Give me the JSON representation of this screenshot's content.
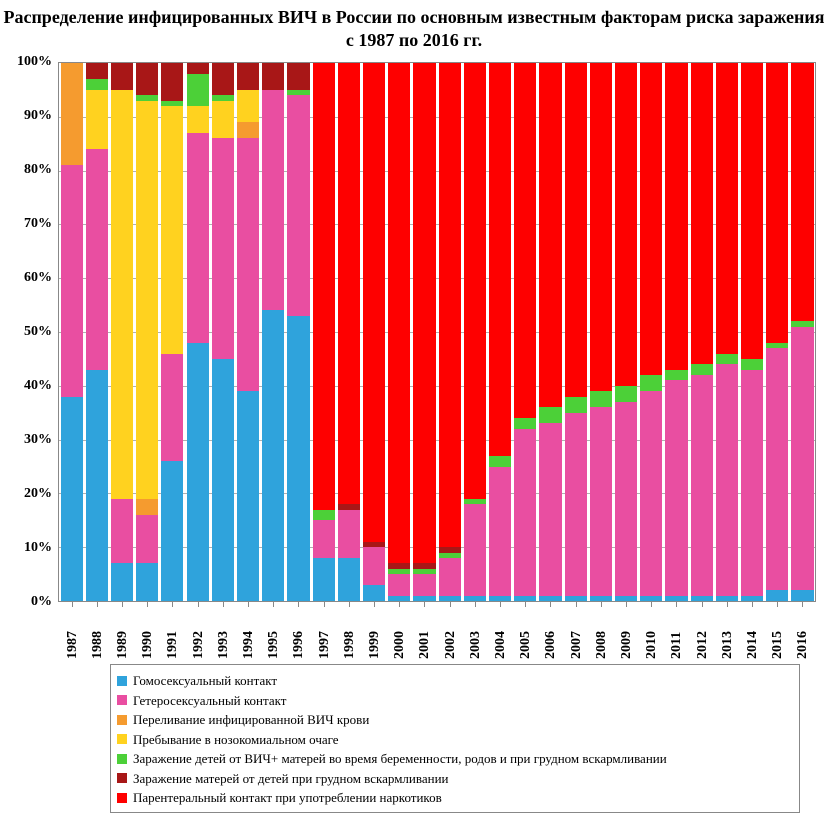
{
  "title": "Распределение инфицированных ВИЧ в России по основным известным факторам риска заражения с 1987 по 2016 гг.",
  "title_fontsize": 18,
  "background_color": "#ffffff",
  "plot_border_color": "#888888",
  "grid_color": "#b0b0b0",
  "y_axis": {
    "min": 0,
    "max": 100,
    "tick_step": 10,
    "tick_labels": [
      "0%",
      "10%",
      "20%",
      "30%",
      "40%",
      "50%",
      "60%",
      "70%",
      "80%",
      "90%",
      "100%"
    ],
    "label_fontsize": 14
  },
  "series": [
    {
      "key": "homo",
      "label": "Гомосексуальный контакт",
      "color": "#2fa3dc"
    },
    {
      "key": "hetero",
      "label": "Гетеросексуальный контакт",
      "color": "#e94ea1"
    },
    {
      "key": "blood",
      "label": "Переливание  инфицированной ВИЧ крови",
      "color": "#f59b2f"
    },
    {
      "key": "nosoc",
      "label": "Пребывание в нозокомиальном очаге",
      "color": "#ffd21f"
    },
    {
      "key": "mtc",
      "label": "Заражение детей от ВИЧ+ матерей во время беременности, родов и при грудном вскармливании",
      "color": "#4cd038"
    },
    {
      "key": "ctm",
      "label": "Заражение матерей от детей при грудном вскармливании",
      "color": "#a81717"
    },
    {
      "key": "drug",
      "label": "Парентеральный контакт при употреблении наркотиков",
      "color": "#fe0000"
    }
  ],
  "legend_position": "bottom",
  "legend_fontsize": 13,
  "categories": [
    "1987",
    "1988",
    "1989",
    "1990",
    "1991",
    "1992",
    "1993",
    "1994",
    "1995",
    "1996",
    "1997",
    "1998",
    "1999",
    "2000",
    "2001",
    "2002",
    "2003",
    "2004",
    "2005",
    "2006",
    "2007",
    "2008",
    "2009",
    "2010",
    "2011",
    "2012",
    "2013",
    "2014",
    "2015",
    "2016"
  ],
  "x_label_rotation": -90,
  "x_label_fontsize": 14,
  "values": {
    "homo": [
      38,
      43,
      7,
      7,
      26,
      48,
      45,
      39,
      54,
      53,
      8,
      8,
      3,
      1,
      1,
      1,
      1,
      1,
      1,
      1,
      1,
      1,
      1,
      1,
      1,
      1,
      1,
      1,
      2,
      2
    ],
    "hetero": [
      43,
      41,
      12,
      9,
      20,
      39,
      41,
      47,
      41,
      41,
      7,
      9,
      7,
      4,
      4,
      7,
      17,
      24,
      31,
      32,
      34,
      35,
      36,
      38,
      40,
      41,
      43,
      42,
      45,
      49
    ],
    "blood": [
      19,
      0,
      0,
      3,
      0,
      0,
      0,
      3,
      0,
      0,
      0,
      0,
      0,
      0,
      0,
      0,
      0,
      0,
      0,
      0,
      0,
      0,
      0,
      0,
      0,
      0,
      0,
      0,
      0,
      0
    ],
    "nosoc": [
      0,
      11,
      76,
      74,
      46,
      5,
      7,
      6,
      0,
      0,
      0,
      0,
      0,
      0,
      0,
      0,
      0,
      0,
      0,
      0,
      0,
      0,
      0,
      0,
      0,
      0,
      0,
      0,
      0,
      0
    ],
    "mtc": [
      0,
      2,
      0,
      1,
      1,
      6,
      1,
      0,
      0,
      1,
      2,
      0,
      0,
      1,
      1,
      1,
      1,
      2,
      2,
      3,
      3,
      3,
      3,
      3,
      2,
      2,
      2,
      2,
      1,
      1
    ],
    "ctm": [
      0,
      3,
      5,
      6,
      7,
      2,
      6,
      5,
      5,
      5,
      0,
      1,
      1,
      1,
      1,
      1,
      0,
      0,
      0,
      0,
      0,
      0,
      0,
      0,
      0,
      0,
      0,
      0,
      0,
      0
    ],
    "drug": [
      0,
      0,
      0,
      0,
      0,
      0,
      0,
      0,
      0,
      0,
      83,
      82,
      89,
      93,
      93,
      90,
      81,
      73,
      66,
      64,
      62,
      61,
      60,
      58,
      57,
      56,
      54,
      55,
      52,
      48
    ]
  },
  "bar_gap_pct": 12
}
